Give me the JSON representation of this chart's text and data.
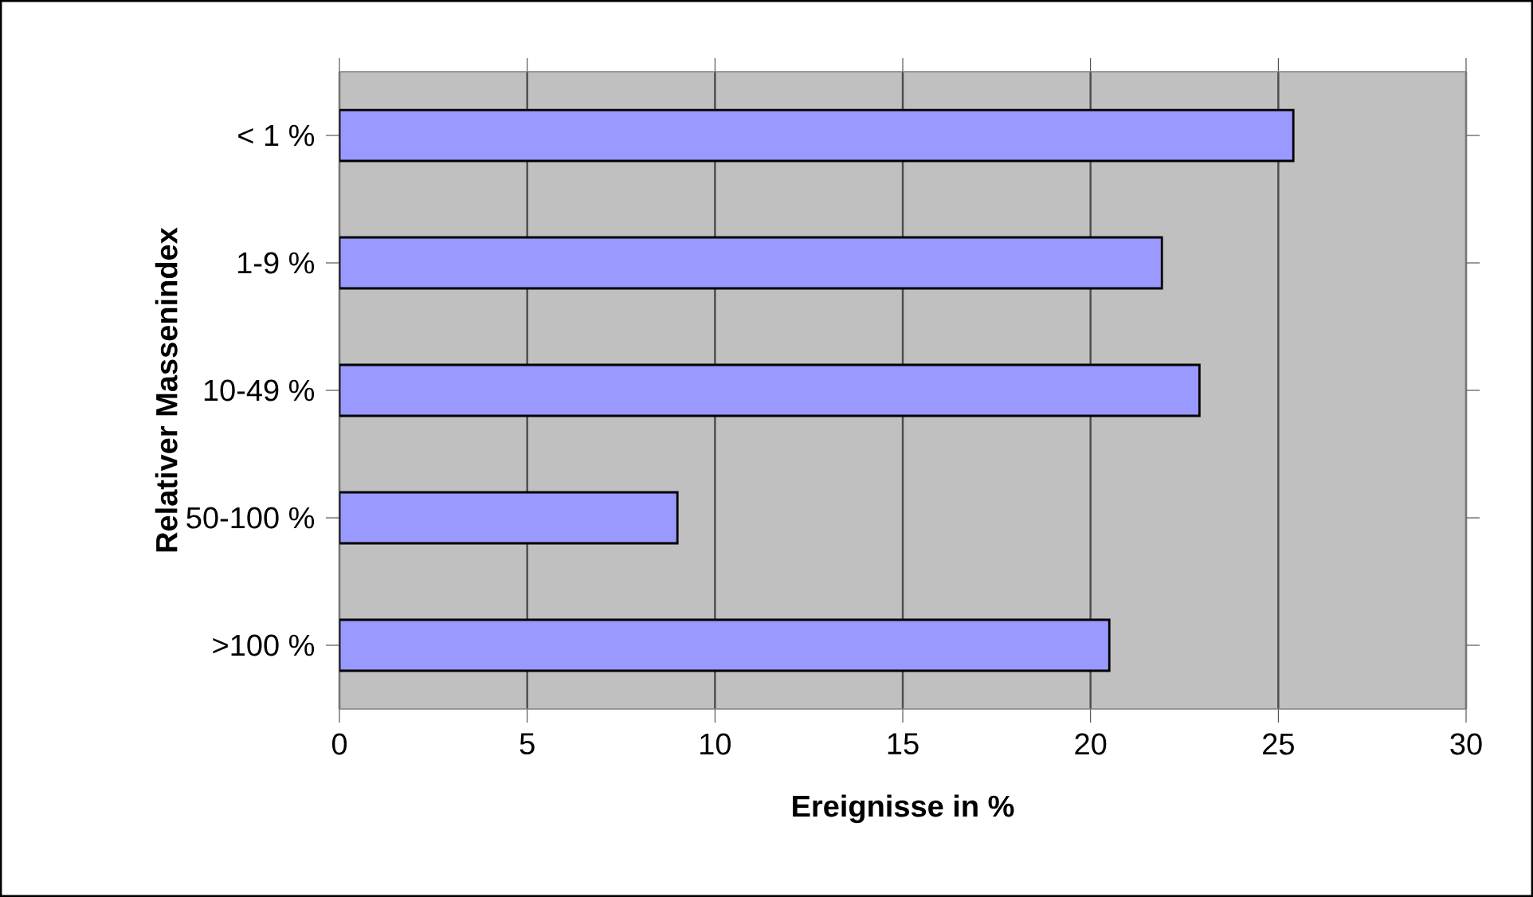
{
  "chart_data": {
    "type": "bar",
    "orientation": "horizontal",
    "categories": [
      "< 1 %",
      "1-9 %",
      "10-49 %",
      "50-100 %",
      ">100 %"
    ],
    "values": [
      25.4,
      21.9,
      22.9,
      9.0,
      20.5
    ],
    "color": "#9999ff",
    "xlabel": "Ereignisse in %",
    "ylabel": "Relativer Massenindex",
    "xlim": [
      0,
      30
    ],
    "xticks": [
      0,
      5,
      10,
      15,
      20,
      25,
      30
    ],
    "grid": "x"
  }
}
